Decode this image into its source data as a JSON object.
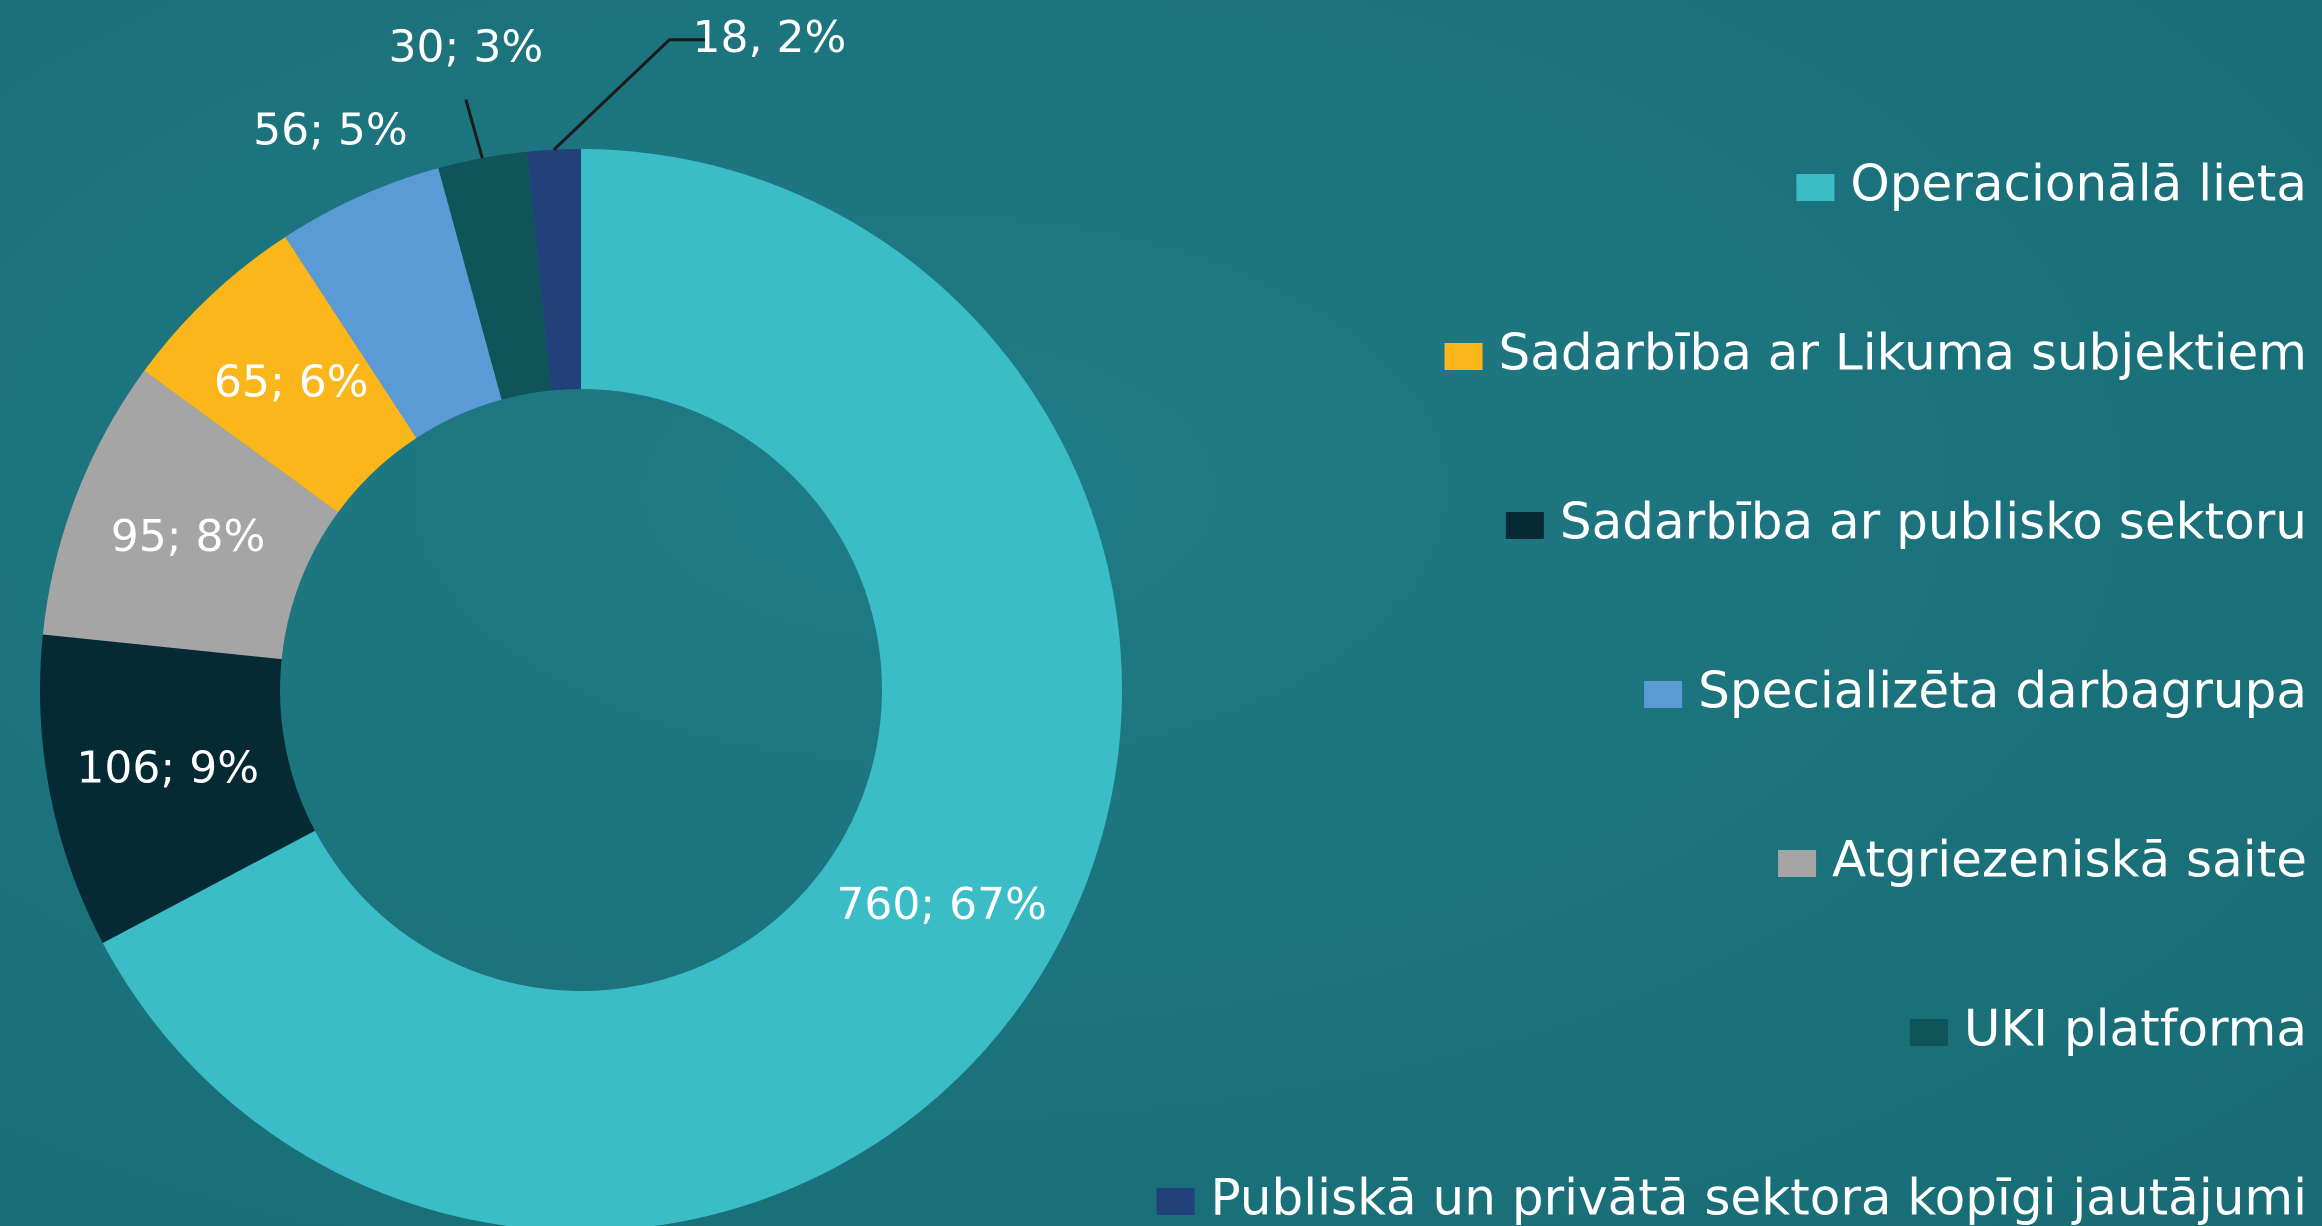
{
  "chart_data": {
    "type": "pie",
    "categories": [
      "Operacionālā lieta",
      "Sadarbība ar publisko sektoru",
      "Atgriezeniskā saite",
      "Sadarbība ar Likuma subjektiem",
      "Specializēta darbagrupa",
      "UKI platforma",
      "Publiskā un privātā sektora kopīgi jautājumi"
    ],
    "values": [
      760,
      106,
      95,
      65,
      56,
      30,
      18
    ],
    "value_labels": [
      "760; 67%",
      "106; 9%",
      "95; 8%",
      "65; 6%",
      "56; 5%",
      "30; 3%",
      "18, 2%"
    ],
    "colors": [
      "#3bbdc8",
      "#052a33",
      "#a5a5a5",
      "#fbb61b",
      "#5b9bd5",
      "#0e5458",
      "#22407a"
    ],
    "donut": true,
    "legend": "right",
    "legend_order": [
      0,
      3,
      1,
      4,
      2,
      5,
      6
    ]
  }
}
